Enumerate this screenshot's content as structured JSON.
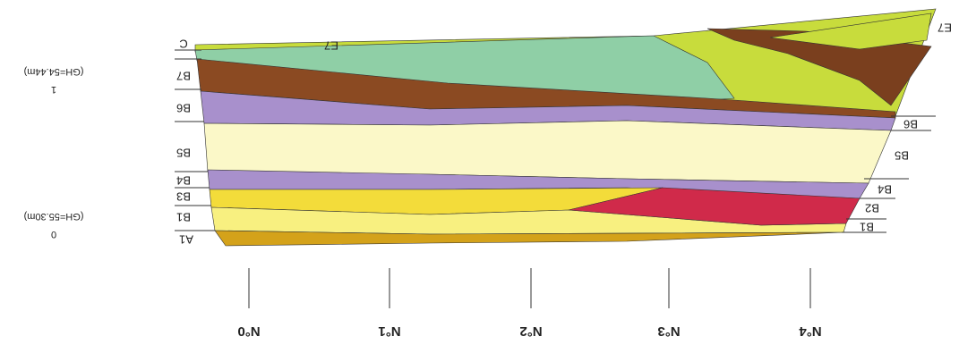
{
  "layer_label": "E7",
  "left_layers": [
    "C",
    "B7",
    "B6",
    "B5",
    "B4",
    "B3",
    "B1",
    "A1"
  ],
  "right_layers": [
    "E7",
    "B6",
    "B5",
    "B4",
    "B2",
    "B1"
  ],
  "stations": [
    "N°0",
    "N°1",
    "N°2",
    "N°3",
    "N°4"
  ],
  "datums": [
    {
      "index": "0",
      "label": "(GH=55.30m)"
    },
    {
      "index": "1",
      "label": "(GH=54.44m)"
    }
  ]
}
